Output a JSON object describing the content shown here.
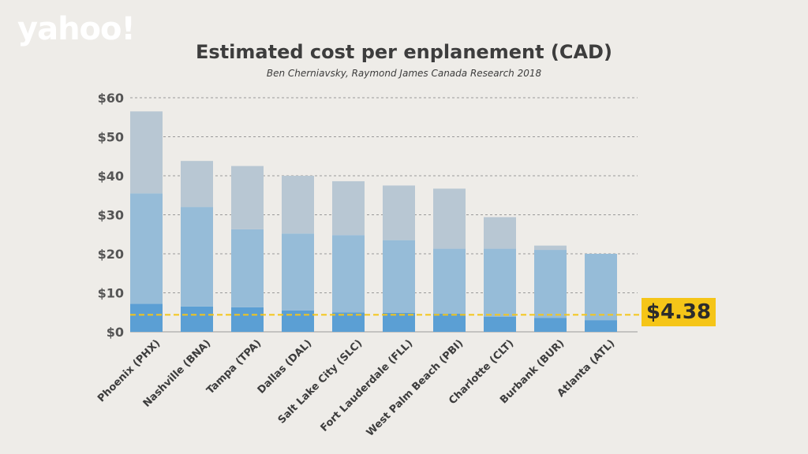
{
  "brand": {
    "logo_text": "yahoo!"
  },
  "chart_data": {
    "type": "bar",
    "stacked": true,
    "title": "Estimated cost per enplanement (CAD)",
    "subtitle": "Ben Cherniavsky, Raymond James Canada Research 2018",
    "categories": [
      "Phoenix (PHX)",
      "Nashville (BNA)",
      "Tampa (TPA)",
      "Dallas (DAL)",
      "Salt Lake City (SLC)",
      "Fort Lauderdale (FLL)",
      "West Palm Beach (PBI)",
      "Charlotte (CLT)",
      "Burbank (BUR)",
      "Atlanta (ATL)"
    ],
    "series": [
      {
        "color": "#5b9fd4",
        "values": [
          7.2,
          6.5,
          6.3,
          5.5,
          5.0,
          4.9,
          4.7,
          3.9,
          3.6,
          3.0
        ]
      },
      {
        "color": "#96bcd8",
        "values": [
          28.3,
          25.5,
          20.0,
          19.7,
          19.8,
          18.6,
          16.6,
          17.4,
          17.4,
          17.0
        ]
      },
      {
        "color": "#b8c7d3",
        "values": [
          21.0,
          11.8,
          16.2,
          14.8,
          13.8,
          14.0,
          15.4,
          8.1,
          1.1,
          0.0
        ]
      }
    ],
    "yticks": [
      "$0",
      "$10",
      "$20",
      "$30",
      "$40",
      "$50",
      "$60"
    ],
    "ylim": [
      0,
      60
    ],
    "grid": true,
    "reference_line": {
      "value": 4.38,
      "label": "$4.38",
      "color": "#f5c518"
    }
  }
}
